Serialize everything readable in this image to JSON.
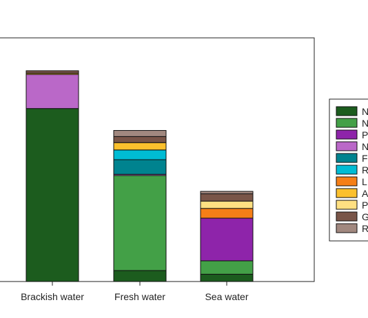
{
  "chart_data": {
    "type": "bar",
    "stacked": true,
    "categories": [
      "Brackish water",
      "Fresh water",
      "Sea water"
    ],
    "ylim": [
      0,
      1.0
    ],
    "grid": false,
    "legend_position": "right",
    "series": [
      {
        "label": "N",
        "color": "#1c5c1e",
        "values": [
          0.71,
          0.045,
          0.03
        ]
      },
      {
        "label": "N",
        "color": "#43a047",
        "values": [
          0.0,
          0.39,
          0.055
        ]
      },
      {
        "label": "P",
        "color": "#8e24aa",
        "values": [
          0.0,
          0.0,
          0.175
        ]
      },
      {
        "label": "N",
        "color": "#ba68c8",
        "values": [
          0.14,
          0.005,
          0.0
        ]
      },
      {
        "label": "F",
        "color": "#00838f",
        "values": [
          0.0,
          0.06,
          0.0
        ]
      },
      {
        "label": "R",
        "color": "#00bcd4",
        "values": [
          0.0,
          0.04,
          0.0
        ]
      },
      {
        "label": "L",
        "color": "#f57f17",
        "values": [
          0.0,
          0.0,
          0.04
        ]
      },
      {
        "label": "A",
        "color": "#fbc02d",
        "values": [
          0.005,
          0.03,
          0.0
        ]
      },
      {
        "label": "P",
        "color": "#ffe082",
        "values": [
          0.0,
          0.0,
          0.03
        ]
      },
      {
        "label": "G",
        "color": "#795548",
        "values": [
          0.01,
          0.025,
          0.03
        ]
      },
      {
        "label": "R",
        "color": "#a1887f",
        "values": [
          0.0,
          0.025,
          0.01
        ]
      }
    ]
  }
}
